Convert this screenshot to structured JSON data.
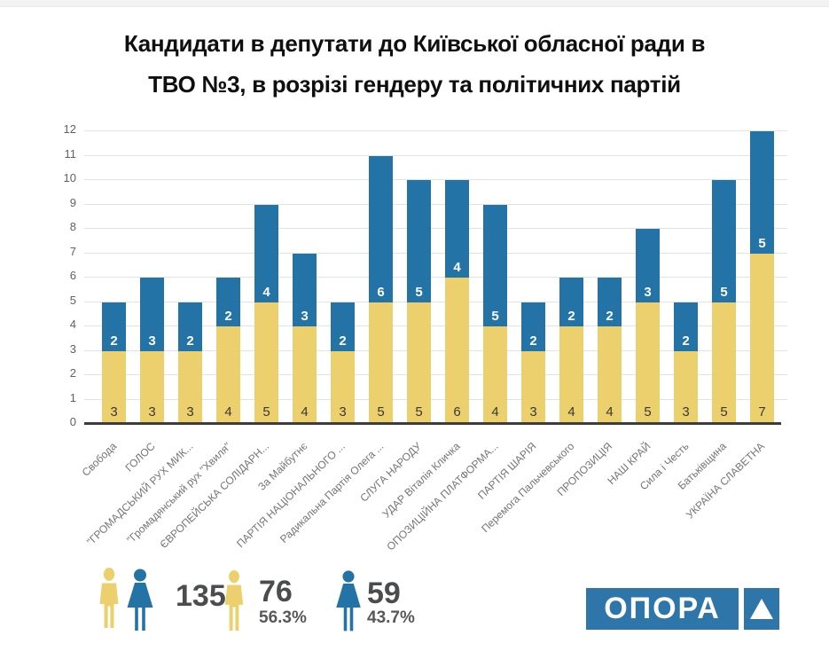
{
  "title": {
    "line1": "Кандидати в депутати до Київської обласної ради в",
    "line2": "ТВО №3, в розрізі гендеру та політичних партій"
  },
  "chart_data": {
    "type": "bar",
    "stacked": true,
    "title": "Кандидати в депутати до Київської обласної ради в ТВО №3, в розрізі гендеру та політичних партій",
    "categories": [
      "Свобода",
      "ГОЛОС",
      "\"ГРОМАДСЬКИЙ РУХ МИК...",
      "\"Громадянський рух \"Хвиля\"",
      "ЄВРОПЕЙСЬКА СОЛІДАРН...",
      "За Майбутнє",
      "ПАРТІЯ НАЦІОНАЛЬНОГО ...",
      "Радикальна Партія Олега ...",
      "СЛУГА НАРОДУ",
      "УДАР Віталія Кличка",
      "ОПОЗИЦІЙНА ПЛАТФОРМА...",
      "ПАРТІЯ ШАРІЯ",
      "Перемога Пальчевського",
      "ПРОПОЗИЦІЯ",
      "НАШ КРАЙ",
      "Сила і Честь",
      "Батьківщина",
      "УКРАЇНА СЛАВЕТНА"
    ],
    "series": [
      {
        "name": "men",
        "color": "#edd06e",
        "values": [
          3,
          3,
          3,
          4,
          5,
          4,
          3,
          5,
          5,
          6,
          4,
          3,
          4,
          4,
          5,
          3,
          5,
          7
        ]
      },
      {
        "name": "women",
        "color": "#2373a7",
        "values": [
          2,
          3,
          2,
          2,
          4,
          3,
          2,
          6,
          5,
          4,
          5,
          2,
          2,
          2,
          3,
          2,
          5,
          5
        ]
      }
    ],
    "ylim": [
      0,
      12
    ],
    "yticks": [
      0,
      1,
      2,
      3,
      4,
      5,
      6,
      7,
      8,
      9,
      10,
      11,
      12
    ],
    "grid": true,
    "legend_position": "none",
    "value_labels": "shown inside segments"
  },
  "footer": {
    "total": {
      "value": "135"
    },
    "men": {
      "value": "76",
      "percent": "56.3%"
    },
    "women": {
      "value": "59",
      "percent": "43.7%"
    },
    "logo": {
      "text": "ОПОРА"
    }
  },
  "colors": {
    "men_yellow": "#edd06e",
    "women_blue": "#2373a7",
    "logo_blue": "#2e76aa",
    "baseline": "#3d3d3d",
    "gridline": "#e2e2e2"
  }
}
